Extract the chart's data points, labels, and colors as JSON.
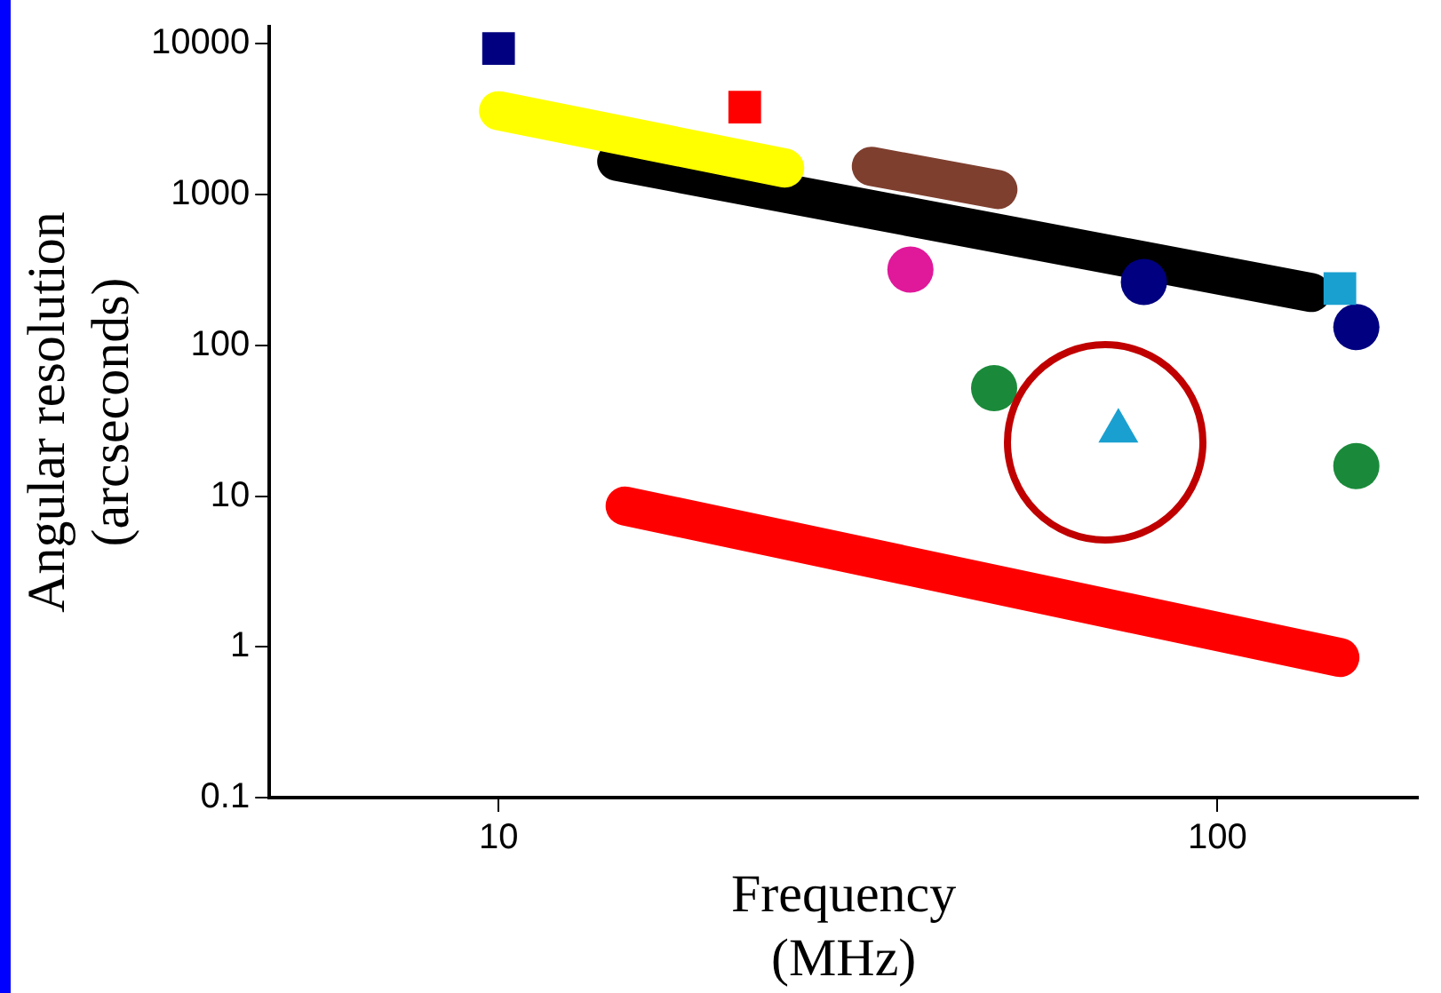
{
  "chart_data": {
    "type": "scatter",
    "xlabel": "Frequency\n(MHz)",
    "ylabel": "Angular resolution\n(arcseconds)",
    "log": "xy",
    "grid": false,
    "xlim": [
      4.8,
      190
    ],
    "ylim": [
      0.1,
      13000
    ],
    "xticks": [
      10,
      100
    ],
    "yticks": [
      0.1,
      1,
      10,
      100,
      1000,
      10000
    ],
    "series": [
      {
        "type": "line",
        "color": "#ffff00",
        "x": [
          10,
          25
        ],
        "values": [
          3600,
          1500
        ]
      },
      {
        "type": "line",
        "color": "#000000",
        "x": [
          14.6,
          135
        ],
        "values": [
          1660,
          224
        ]
      },
      {
        "type": "line",
        "color": "#7f3f2f",
        "x": [
          33,
          49.5
        ],
        "values": [
          1540,
          1080
        ]
      },
      {
        "type": "line",
        "color": "#ff0000",
        "x": [
          15,
          148
        ],
        "values": [
          8.6,
          0.85
        ]
      },
      {
        "type": "scatter",
        "marker": "square",
        "color": "#000080",
        "x": [
          10
        ],
        "values": [
          9300
        ]
      },
      {
        "type": "scatter",
        "marker": "square",
        "color": "#ff0000",
        "x": [
          22
        ],
        "values": [
          3800
        ]
      },
      {
        "type": "scatter",
        "marker": "square",
        "color": "#1aa0d0",
        "x": [
          148
        ],
        "values": [
          238
        ]
      },
      {
        "type": "scatter",
        "marker": "circle",
        "color": "#e0189a",
        "x": [
          37.4
        ],
        "values": [
          318
        ]
      },
      {
        "type": "scatter",
        "marker": "circle",
        "color": "#000080",
        "x": [
          79,
          156
        ],
        "values": [
          263,
          132
        ]
      },
      {
        "type": "scatter",
        "marker": "circle",
        "color": "#1a8a3a",
        "x": [
          48.9,
          156
        ],
        "values": [
          52,
          15.8
        ]
      },
      {
        "type": "scatter",
        "marker": "triangle",
        "color": "#1aa0d0",
        "x": [
          72.8
        ],
        "values": [
          27
        ]
      }
    ]
  }
}
